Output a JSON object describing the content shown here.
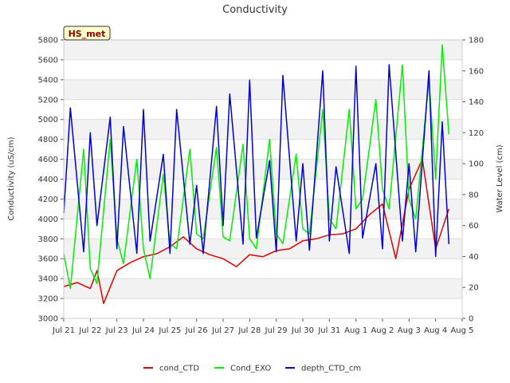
{
  "chart_data": {
    "type": "line",
    "title": "Conductivity",
    "badge": "HS_met",
    "ylabel": "Conductivity (uS/cm)",
    "y2label": "Water Level (cm)",
    "ylim": [
      3000,
      5800
    ],
    "y2lim": [
      0,
      180
    ],
    "xlim": [
      "2024-07-21",
      "2024-08-05"
    ],
    "xticks": [
      "Jul 21",
      "Jul 22",
      "Jul 23",
      "Jul 24",
      "Jul 25",
      "Jul 26",
      "Jul 27",
      "Jul 28",
      "Jul 29",
      "Jul 30",
      "Jul 31",
      "Aug 1",
      "Aug 2",
      "Aug 3",
      "Aug 4",
      "Aug 5"
    ],
    "yticks": [
      3000,
      3200,
      3400,
      3600,
      3800,
      4000,
      4200,
      4400,
      4600,
      4800,
      5000,
      5200,
      5400,
      5600,
      5800
    ],
    "y2ticks": [
      0,
      20,
      40,
      60,
      80,
      100,
      120,
      140,
      160,
      180
    ],
    "legend_position": "bottom-center",
    "series": [
      {
        "name": "cond_CTD",
        "axis": "left",
        "color": "#dd0000",
        "x": [
          "2024-07-21 00:00",
          "2024-07-21 12:00",
          "2024-07-22 00:00",
          "2024-07-22 06:00",
          "2024-07-22 12:00",
          "2024-07-23 00:00",
          "2024-07-23 12:00",
          "2024-07-24 00:00",
          "2024-07-24 12:00",
          "2024-07-25 00:00",
          "2024-07-25 12:00",
          "2024-07-26 00:00",
          "2024-07-26 12:00",
          "2024-07-27 00:00",
          "2024-07-27 12:00",
          "2024-07-28 00:00",
          "2024-07-28 12:00",
          "2024-07-29 00:00",
          "2024-07-29 12:00",
          "2024-07-30 00:00",
          "2024-07-30 12:00",
          "2024-07-31 00:00",
          "2024-07-31 12:00",
          "2024-08-01 00:00",
          "2024-08-01 12:00",
          "2024-08-02 00:00",
          "2024-08-02 12:00",
          "2024-08-03 00:00",
          "2024-08-03 12:00",
          "2024-08-04 00:00",
          "2024-08-04 12:00"
        ],
        "y": [
          3320,
          3360,
          3300,
          3480,
          3150,
          3480,
          3560,
          3620,
          3650,
          3720,
          3820,
          3700,
          3640,
          3600,
          3520,
          3640,
          3620,
          3680,
          3700,
          3780,
          3800,
          3840,
          3850,
          3900,
          4040,
          4150,
          3600,
          4300,
          4600,
          3700,
          4100
        ]
      },
      {
        "name": "Cond_EXO",
        "axis": "left",
        "color": "#00ee00",
        "x": [
          "2024-07-21 00:00",
          "2024-07-21 06:00",
          "2024-07-21 18:00",
          "2024-07-22 00:00",
          "2024-07-22 06:00",
          "2024-07-22 18:00",
          "2024-07-23 00:00",
          "2024-07-23 06:00",
          "2024-07-23 18:00",
          "2024-07-24 00:00",
          "2024-07-24 06:00",
          "2024-07-24 18:00",
          "2024-07-25 00:00",
          "2024-07-25 06:00",
          "2024-07-25 18:00",
          "2024-07-26 00:00",
          "2024-07-26 06:00",
          "2024-07-26 18:00",
          "2024-07-27 00:00",
          "2024-07-27 06:00",
          "2024-07-27 18:00",
          "2024-07-28 00:00",
          "2024-07-28 06:00",
          "2024-07-28 18:00",
          "2024-07-29 00:00",
          "2024-07-29 06:00",
          "2024-07-29 18:00",
          "2024-07-30 00:00",
          "2024-07-30 06:00",
          "2024-07-30 18:00",
          "2024-07-31 00:00",
          "2024-07-31 06:00",
          "2024-07-31 18:00",
          "2024-08-01 00:00",
          "2024-08-01 06:00",
          "2024-08-01 18:00",
          "2024-08-02 00:00",
          "2024-08-02 06:00",
          "2024-08-02 18:00",
          "2024-08-03 00:00",
          "2024-08-03 06:00",
          "2024-08-03 18:00",
          "2024-08-04 00:00",
          "2024-08-04 06:00",
          "2024-08-04 12:00"
        ],
        "y": [
          3650,
          3300,
          4700,
          3500,
          3350,
          4800,
          3800,
          3550,
          4600,
          3700,
          3400,
          4450,
          3750,
          3700,
          4700,
          3850,
          3800,
          4720,
          3820,
          3780,
          4750,
          3800,
          3700,
          4800,
          3850,
          3750,
          4650,
          3900,
          3850,
          5100,
          4000,
          3900,
          5100,
          4100,
          4200,
          5200,
          4300,
          4100,
          5550,
          4200,
          4000,
          5400,
          4400,
          5750,
          4850
        ]
      },
      {
        "name": "depth_CTD_cm",
        "axis": "right",
        "color": "#0000cc",
        "x": [
          "2024-07-21 00:00",
          "2024-07-21 06:00",
          "2024-07-21 18:00",
          "2024-07-22 00:00",
          "2024-07-22 06:00",
          "2024-07-22 18:00",
          "2024-07-23 00:00",
          "2024-07-23 06:00",
          "2024-07-23 18:00",
          "2024-07-24 00:00",
          "2024-07-24 06:00",
          "2024-07-24 18:00",
          "2024-07-25 00:00",
          "2024-07-25 06:00",
          "2024-07-25 18:00",
          "2024-07-26 00:00",
          "2024-07-26 06:00",
          "2024-07-26 18:00",
          "2024-07-27 00:00",
          "2024-07-27 06:00",
          "2024-07-27 18:00",
          "2024-07-28 00:00",
          "2024-07-28 06:00",
          "2024-07-28 18:00",
          "2024-07-29 00:00",
          "2024-07-29 06:00",
          "2024-07-29 18:00",
          "2024-07-30 00:00",
          "2024-07-30 06:00",
          "2024-07-30 18:00",
          "2024-07-31 00:00",
          "2024-07-31 06:00",
          "2024-07-31 18:00",
          "2024-08-01 00:00",
          "2024-08-01 06:00",
          "2024-08-01 18:00",
          "2024-08-02 00:00",
          "2024-08-02 06:00",
          "2024-08-02 18:00",
          "2024-08-03 00:00",
          "2024-08-03 06:00",
          "2024-08-03 18:00",
          "2024-08-04 00:00",
          "2024-08-04 06:00",
          "2024-08-04 12:00"
        ],
        "y": [
          68,
          136,
          43,
          120,
          60,
          130,
          45,
          124,
          42,
          135,
          50,
          106,
          42,
          135,
          48,
          86,
          42,
          137,
          60,
          145,
          48,
          154,
          52,
          102,
          43,
          157,
          50,
          100,
          44,
          160,
          50,
          98,
          42,
          163,
          52,
          100,
          45,
          164,
          50,
          100,
          43,
          160,
          40,
          127,
          48
        ]
      }
    ]
  }
}
